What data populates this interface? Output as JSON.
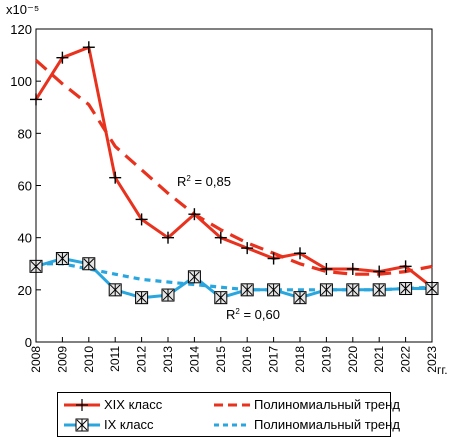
{
  "chart_data": {
    "type": "line",
    "y_axis_exponent_label": "x10⁻⁵",
    "x_unit_label": "гг.",
    "categories": [
      "2008",
      "2009",
      "2010",
      "2011",
      "2012",
      "2013",
      "2014",
      "2015",
      "2016",
      "2017",
      "2018",
      "2019",
      "2020",
      "2021",
      "2022",
      "2023"
    ],
    "ylim": [
      0,
      120
    ],
    "yticks": [
      0,
      20,
      40,
      60,
      80,
      100,
      120
    ],
    "series": [
      {
        "name": "XIX класс",
        "marker": "plus",
        "color": "#e8321e",
        "values": [
          93,
          109,
          113,
          63,
          47,
          40,
          49,
          40,
          36,
          32,
          34,
          28,
          28,
          27,
          29,
          21
        ]
      },
      {
        "name": "IX класс",
        "marker": "asterisk",
        "color": "#2aa6df",
        "values": [
          29,
          32,
          30,
          20,
          17,
          18,
          25,
          17,
          20,
          20,
          17,
          20,
          20,
          20,
          20.5,
          20.5
        ]
      }
    ],
    "trends": [
      {
        "name": "Полиномиальный тренд",
        "color": "#e8321e",
        "style": "dashed",
        "r2_label": "R",
        "r2_sup": "2",
        "r2_value": " = 0,85",
        "values": [
          108,
          99,
          91,
          75,
          66,
          57,
          49,
          43,
          38,
          34,
          30,
          27,
          26,
          26,
          27,
          29
        ]
      },
      {
        "name": "Полиномиальный тренд",
        "color": "#2aa6df",
        "style": "dotted",
        "r2_label": "R",
        "r2_sup": "2",
        "r2_value": " = 0,60",
        "values": [
          30,
          30,
          28,
          26,
          24,
          23,
          22,
          21,
          20,
          20,
          20,
          20,
          20,
          20,
          20.5,
          21
        ]
      }
    ],
    "grid": false,
    "legend_position": "bottom"
  }
}
